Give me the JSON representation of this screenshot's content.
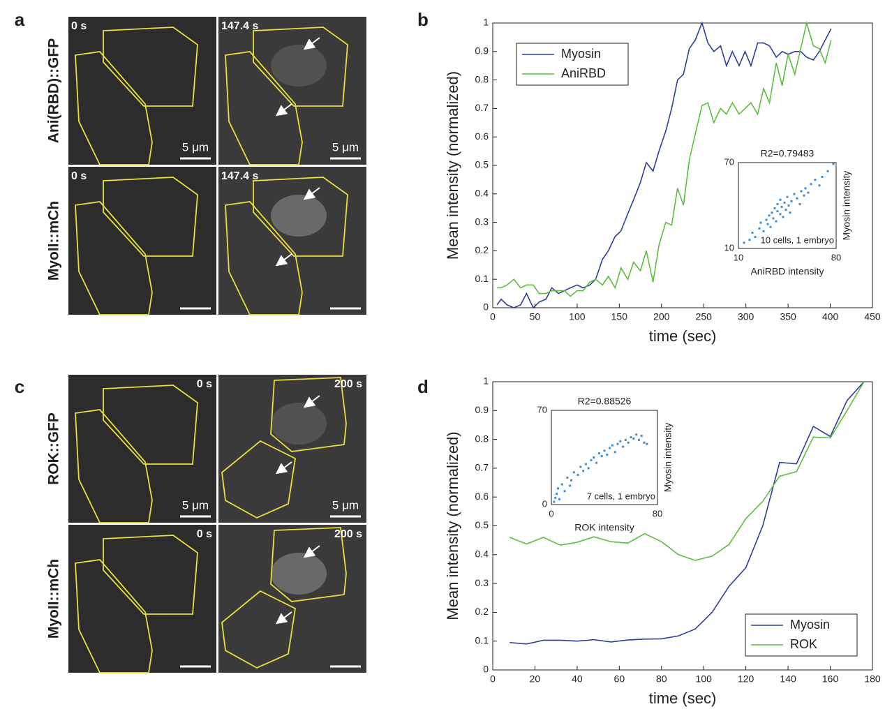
{
  "panel_labels": [
    "a",
    "b",
    "c",
    "d"
  ],
  "image_panels": [
    {
      "rows": [
        {
          "name": "Ani(RBD)::GFP",
          "images": [
            {
              "time": "0 s",
              "scale": "5 μm"
            },
            {
              "time": "147.4 s",
              "scale": "5 μm"
            }
          ]
        },
        {
          "name": "MyoII::mCh",
          "images": [
            {
              "time": "0 s"
            },
            {
              "time": "147.4 s"
            }
          ]
        }
      ]
    },
    {
      "rows": [
        {
          "name": "ROK::GFP",
          "images": [
            {
              "time": "0 s",
              "scale": "5 μm"
            },
            {
              "time": "200 s",
              "scale": "5 μm"
            }
          ]
        },
        {
          "name": "MyoII::mCh",
          "images": [
            {
              "time": "0 s"
            },
            {
              "time": "200 s"
            }
          ]
        }
      ]
    }
  ],
  "chart_data": [
    {
      "type": "line",
      "xlabel": "time (sec)",
      "ylabel": "Mean intensity (normalized)",
      "x": [
        5,
        10,
        17,
        25,
        33,
        40,
        48,
        55,
        63,
        70,
        78,
        85,
        92,
        100,
        107,
        115,
        122,
        130,
        137,
        145,
        152,
        160,
        167,
        175,
        182,
        190,
        197,
        205,
        212,
        219,
        226,
        233,
        240,
        248,
        255,
        262,
        270,
        277,
        284,
        292,
        299,
        306,
        314,
        321,
        328,
        336,
        343,
        350,
        358,
        365,
        372,
        380,
        387,
        394,
        401
      ],
      "series": [
        {
          "name": "Myosin",
          "color": "#2b3f99",
          "values": [
            0.01,
            0.03,
            0.01,
            0.0,
            0.01,
            0.05,
            0.0,
            0.02,
            0.03,
            0.07,
            0.05,
            0.06,
            0.07,
            0.08,
            0.07,
            0.08,
            0.1,
            0.17,
            0.2,
            0.25,
            0.27,
            0.33,
            0.38,
            0.44,
            0.51,
            0.48,
            0.55,
            0.62,
            0.7,
            0.8,
            0.82,
            0.91,
            0.94,
            1.0,
            0.93,
            0.9,
            0.92,
            0.85,
            0.9,
            0.85,
            0.9,
            0.85,
            0.93,
            0.93,
            0.92,
            0.88,
            0.9,
            0.89,
            0.9,
            0.9,
            0.88,
            0.87,
            0.9,
            0.94,
            0.98
          ]
        },
        {
          "name": "AniRBD",
          "color": "#5bbf3d",
          "values": [
            0.07,
            0.07,
            0.08,
            0.1,
            0.07,
            0.08,
            0.08,
            0.05,
            0.05,
            0.06,
            0.06,
            0.06,
            0.04,
            0.06,
            0.06,
            0.09,
            0.1,
            0.08,
            0.11,
            0.07,
            0.14,
            0.1,
            0.16,
            0.13,
            0.2,
            0.09,
            0.22,
            0.3,
            0.29,
            0.42,
            0.36,
            0.52,
            0.61,
            0.71,
            0.72,
            0.65,
            0.7,
            0.68,
            0.72,
            0.68,
            0.7,
            0.72,
            0.68,
            0.77,
            0.72,
            0.86,
            0.78,
            0.89,
            0.82,
            0.91,
            1.0,
            0.92,
            0.91,
            0.86,
            0.94
          ]
        }
      ],
      "xlim": [
        0,
        450
      ],
      "xticks": [
        0,
        50,
        100,
        150,
        200,
        250,
        300,
        350,
        400,
        450
      ],
      "ylim": [
        0,
        1
      ],
      "yticks": [
        0,
        0.1,
        0.2,
        0.3,
        0.4,
        0.5,
        0.6,
        0.7,
        0.8,
        0.9,
        1
      ],
      "legend": "upper left"
    },
    {
      "type": "scatter",
      "title": "R2=0.79483",
      "xlabel": "AniRBD intensity",
      "ylabel": "Myosin intensity",
      "annotation": "10 cells, 1 embryo",
      "color": "#3d8fd1",
      "x": [
        14,
        18,
        20,
        22,
        25,
        26,
        28,
        30,
        31,
        32,
        33,
        34,
        35,
        36,
        37,
        38,
        38,
        40,
        40,
        41,
        42,
        43,
        44,
        45,
        46,
        47,
        48,
        50,
        52,
        54,
        55,
        57,
        58,
        60,
        62,
        65,
        68,
        70,
        74,
        78
      ],
      "values": [
        14,
        16,
        21,
        18,
        24,
        28,
        22,
        30,
        27,
        33,
        25,
        35,
        31,
        38,
        29,
        36,
        41,
        34,
        44,
        39,
        32,
        42,
        37,
        46,
        40,
        35,
        43,
        48,
        45,
        41,
        50,
        47,
        52,
        49,
        55,
        58,
        54,
        60,
        64,
        69
      ],
      "xlim": [
        10,
        80
      ],
      "xticks": [
        10,
        80
      ],
      "ylim": [
        10,
        70
      ],
      "yticks": [
        10,
        70
      ]
    },
    {
      "type": "line",
      "xlabel": "time (sec)",
      "ylabel": "Mean intensity (normalized)",
      "x": [
        8,
        16,
        24,
        32,
        40,
        48,
        56,
        64,
        72,
        80,
        88,
        96,
        104,
        112,
        120,
        128,
        136,
        144,
        152,
        160,
        168,
        176
      ],
      "series": [
        {
          "name": "Myosin",
          "color": "#2b3f99",
          "values": [
            0.095,
            0.09,
            0.103,
            0.103,
            0.1,
            0.105,
            0.097,
            0.104,
            0.107,
            0.108,
            0.118,
            0.142,
            0.2,
            0.29,
            0.355,
            0.5,
            0.72,
            0.715,
            0.845,
            0.81,
            0.935,
            1.0
          ]
        },
        {
          "name": "ROK",
          "color": "#5bbf3d",
          "values": [
            0.46,
            0.437,
            0.46,
            0.433,
            0.443,
            0.462,
            0.445,
            0.44,
            0.473,
            0.445,
            0.4,
            0.38,
            0.395,
            0.435,
            0.525,
            0.585,
            0.672,
            0.688,
            0.808,
            0.805,
            0.9,
            1.0
          ]
        }
      ],
      "xlim": [
        0,
        180
      ],
      "xticks": [
        0,
        20,
        40,
        60,
        80,
        100,
        120,
        140,
        160,
        180
      ],
      "ylim": [
        0,
        1
      ],
      "yticks": [
        0,
        0.1,
        0.2,
        0.3,
        0.4,
        0.5,
        0.6,
        0.7,
        0.8,
        0.9,
        1
      ],
      "legend": "lower right"
    },
    {
      "type": "scatter",
      "title": "R2=0.88526",
      "xlabel": "ROK intensity",
      "ylabel": "Myosin intensity",
      "annotation": "7 cells, 1 embryo",
      "color": "#3d8fd1",
      "x": [
        2,
        3,
        4,
        5,
        6,
        8,
        10,
        12,
        14,
        15,
        17,
        20,
        22,
        24,
        26,
        28,
        30,
        32,
        34,
        36,
        38,
        40,
        42,
        44,
        46,
        48,
        50,
        52,
        54,
        56,
        58,
        60,
        62,
        64,
        66,
        68,
        70,
        72
      ],
      "values": [
        2,
        5,
        8,
        12,
        4,
        15,
        10,
        20,
        14,
        18,
        24,
        22,
        28,
        25,
        30,
        27,
        33,
        35,
        31,
        38,
        36,
        40,
        37,
        42,
        44,
        39,
        45,
        47,
        43,
        48,
        46,
        50,
        49,
        52,
        48,
        51,
        46,
        45
      ],
      "xlim": [
        0,
        80
      ],
      "xticks": [
        0,
        80
      ],
      "ylim": [
        0,
        70
      ],
      "yticks": [
        0,
        70
      ]
    }
  ]
}
